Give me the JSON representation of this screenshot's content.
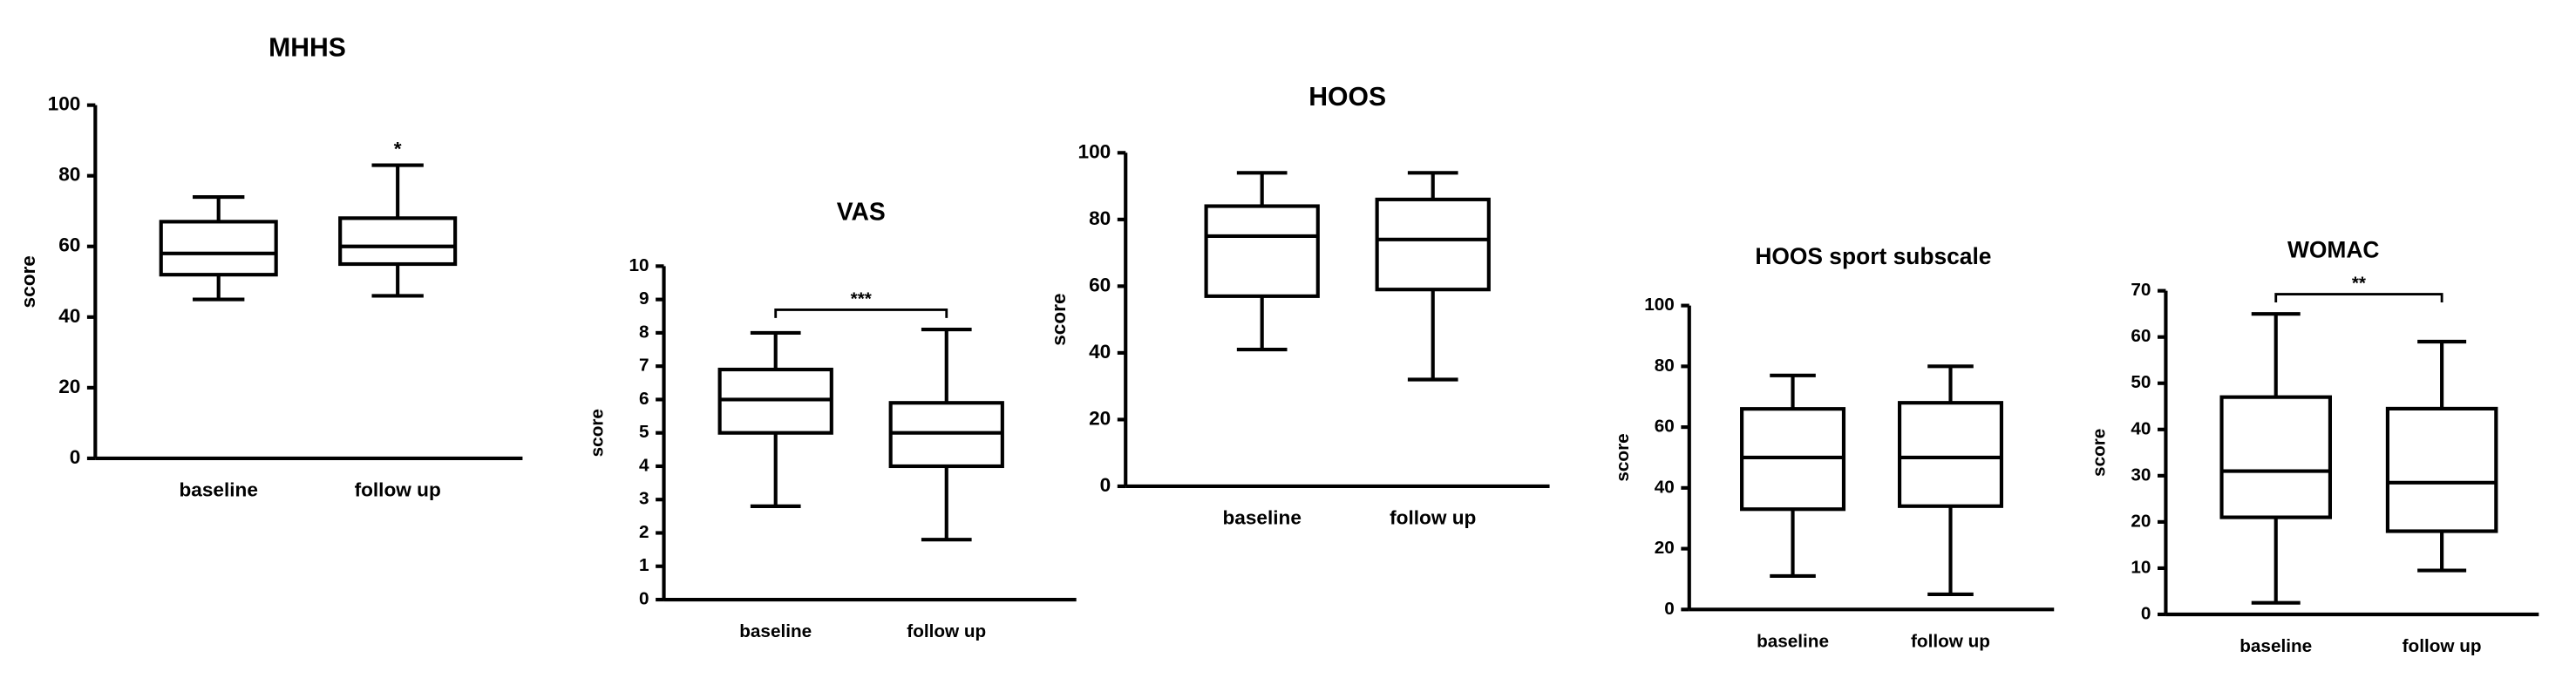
{
  "chart_data": [
    {
      "type": "box",
      "title": "MHHS",
      "ylabel": "score",
      "categories": [
        "baseline",
        "follow up"
      ],
      "boxes": [
        {
          "min": 45,
          "q1": 52,
          "median": 58,
          "q3": 67,
          "max": 74
        },
        {
          "min": 46,
          "q1": 55,
          "median": 60,
          "q3": 68,
          "max": 83
        }
      ],
      "ylim": [
        0,
        100
      ],
      "yticks": [
        0,
        20,
        40,
        60,
        80,
        100
      ],
      "annotation": "*",
      "bracket": false,
      "color": "#000000"
    },
    {
      "type": "box",
      "title": "VAS",
      "ylabel": "score",
      "categories": [
        "baseline",
        "follow up"
      ],
      "boxes": [
        {
          "min": 2.8,
          "q1": 5,
          "median": 6,
          "q3": 6.9,
          "max": 8
        },
        {
          "min": 1.8,
          "q1": 4,
          "median": 5,
          "q3": 5.9,
          "max": 8.1
        }
      ],
      "ylim": [
        0,
        10
      ],
      "yticks": [
        0,
        1,
        2,
        3,
        4,
        5,
        6,
        7,
        8,
        9,
        10
      ],
      "annotation": "***",
      "bracket": true,
      "color": "#000000"
    },
    {
      "type": "box",
      "title": "HOOS",
      "ylabel": "score",
      "categories": [
        "baseline",
        "follow up"
      ],
      "boxes": [
        {
          "min": 41,
          "q1": 57,
          "median": 75,
          "q3": 84,
          "max": 94
        },
        {
          "min": 32,
          "q1": 59,
          "median": 74,
          "q3": 86,
          "max": 94
        }
      ],
      "ylim": [
        0,
        100
      ],
      "yticks": [
        0,
        20,
        40,
        60,
        80,
        100
      ],
      "color": "#000000"
    },
    {
      "type": "box",
      "title": "HOOS sport subscale",
      "ylabel": "score",
      "categories": [
        "baseline",
        "follow up"
      ],
      "boxes": [
        {
          "min": 11,
          "q1": 33,
          "median": 50,
          "q3": 66,
          "max": 77
        },
        {
          "min": 5,
          "q1": 34,
          "median": 50,
          "q3": 68,
          "max": 80
        }
      ],
      "ylim": [
        0,
        100
      ],
      "yticks": [
        0,
        20,
        40,
        60,
        80,
        100
      ],
      "color": "#000000"
    },
    {
      "type": "box",
      "title": "WOMAC",
      "ylabel": "score",
      "categories": [
        "baseline",
        "follow up"
      ],
      "boxes": [
        {
          "min": 2.5,
          "q1": 21,
          "median": 31,
          "q3": 47,
          "max": 65
        },
        {
          "min": 9.5,
          "q1": 18,
          "median": 28.5,
          "q3": 44.5,
          "max": 59
        }
      ],
      "ylim": [
        0,
        70
      ],
      "yticks": [
        0,
        10,
        20,
        30,
        40,
        50,
        60,
        70
      ],
      "annotation": "**",
      "bracket": true,
      "color": "#000000"
    }
  ]
}
